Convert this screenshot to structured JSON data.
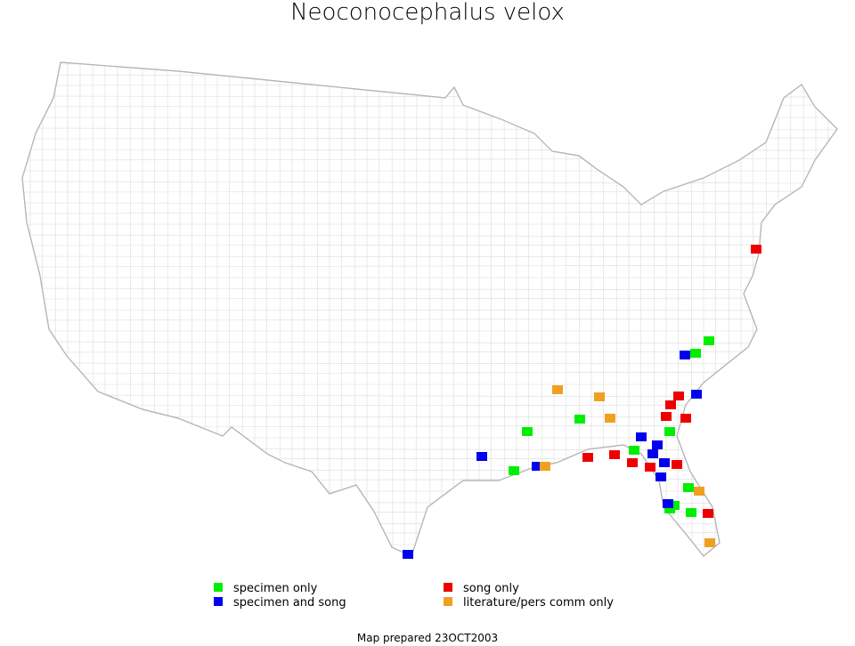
{
  "title": "Neoconocephalus velox",
  "legend": [
    {
      "label": "specimen only",
      "color": "#00ee00"
    },
    {
      "label": "specimen and song",
      "color": "#0000ee"
    },
    {
      "label": "song only",
      "color": "#ee0000"
    },
    {
      "label": "literature/pers comm only",
      "color": "#f0a020"
    }
  ],
  "footer": "Map prepared 23OCT2003"
}
